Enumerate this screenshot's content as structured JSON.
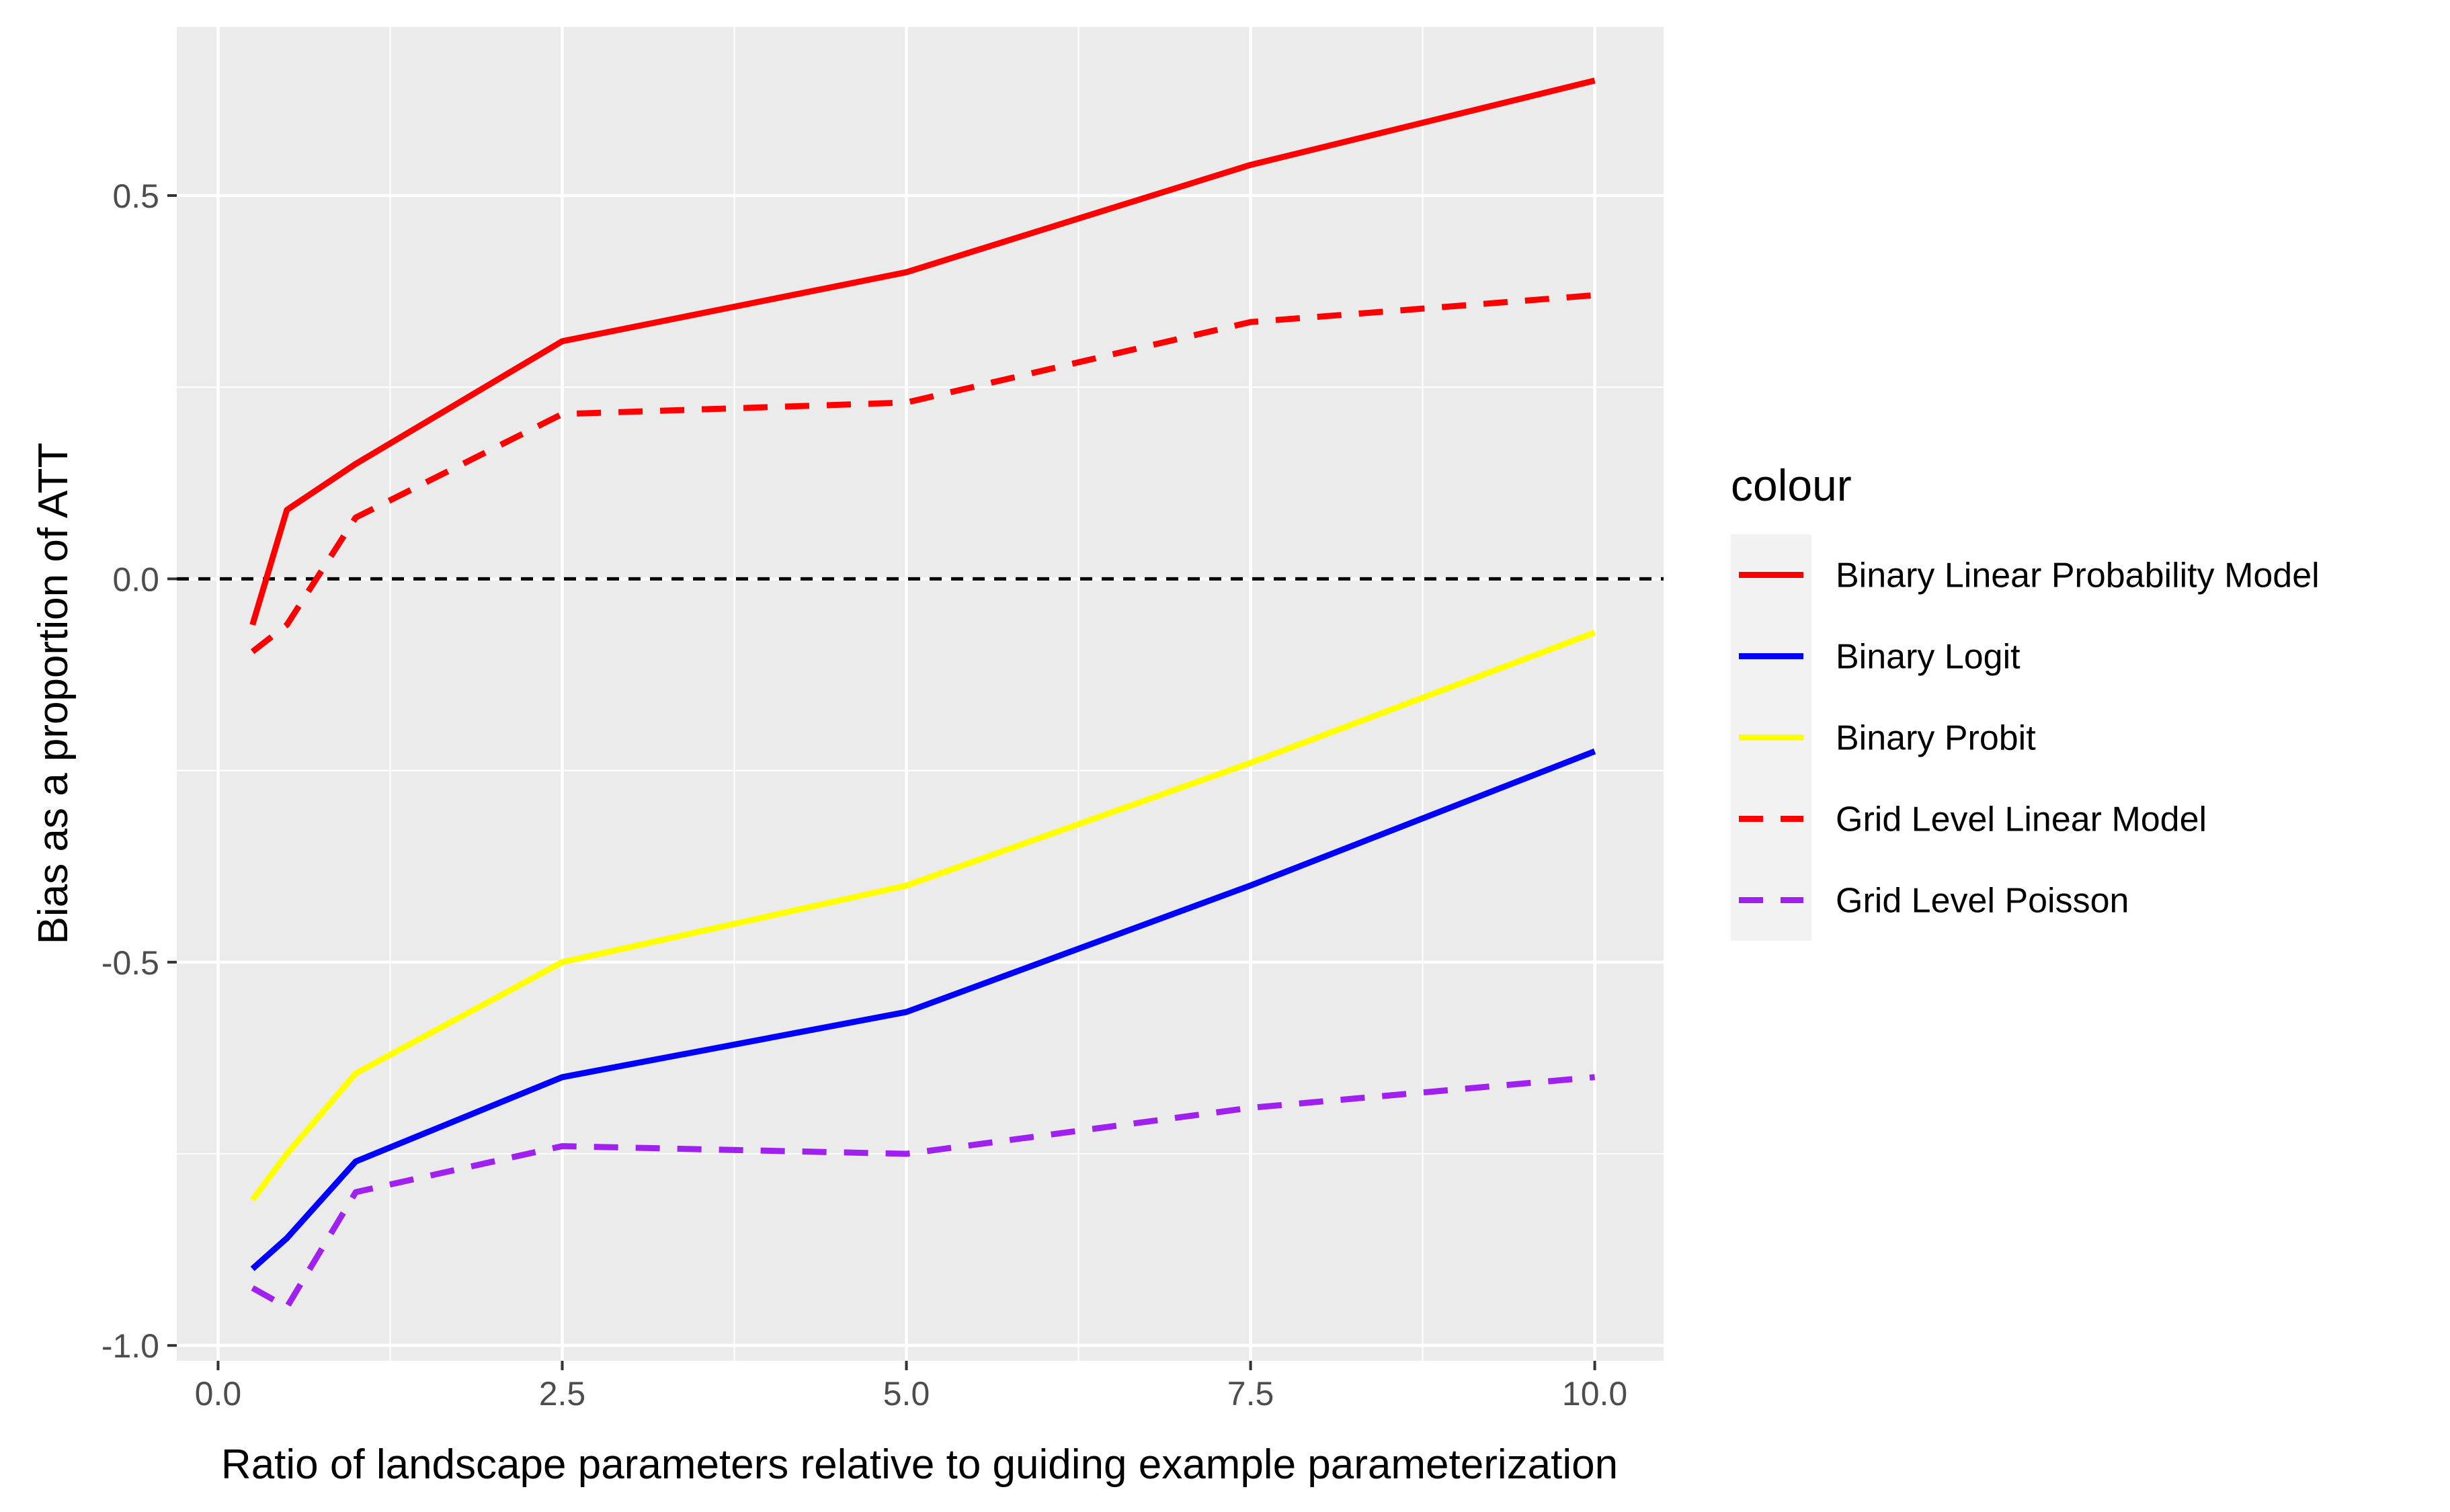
{
  "chart_data": {
    "type": "line",
    "xlabel": "Ratio of landscape parameters relative to guiding example parameterization",
    "ylabel": "Bias as a proportion of ATT",
    "xlim": [
      -0.3,
      10.5
    ],
    "ylim": [
      -1.02,
      0.72
    ],
    "x_ticks": [
      0.0,
      2.5,
      5.0,
      7.5,
      10.0
    ],
    "x_tick_labels": [
      "0.0",
      "2.5",
      "5.0",
      "7.5",
      "10.0"
    ],
    "y_ticks": [
      0.5,
      0.0,
      -0.5,
      -1.0
    ],
    "y_tick_labels": [
      "0.5",
      "0.0",
      "-0.5",
      "-1.0"
    ],
    "grid": true,
    "legend": {
      "title": "colour",
      "position": "right"
    },
    "reference_line": {
      "y": 0.0,
      "style": "dashed",
      "color": "#000000"
    },
    "series": [
      {
        "name": "Binary Linear Probability Model",
        "color": "#FF0000",
        "dash": "solid",
        "x": [
          0.25,
          0.5,
          1.0,
          2.5,
          5.0,
          7.5,
          10.0
        ],
        "y": [
          -0.06,
          0.09,
          0.15,
          0.31,
          0.4,
          0.54,
          0.65
        ]
      },
      {
        "name": "Binary Logit",
        "color": "#0000FF",
        "dash": "solid",
        "x": [
          0.25,
          0.5,
          1.0,
          2.5,
          5.0,
          7.5,
          10.0
        ],
        "y": [
          -0.9,
          -0.86,
          -0.76,
          -0.65,
          -0.565,
          -0.4,
          -0.225
        ]
      },
      {
        "name": "Binary Probit",
        "color": "#FFFF00",
        "dash": "solid",
        "x": [
          0.25,
          0.5,
          1.0,
          2.5,
          5.0,
          7.5,
          10.0
        ],
        "y": [
          -0.81,
          -0.75,
          -0.645,
          -0.5,
          -0.4,
          -0.24,
          -0.07
        ]
      },
      {
        "name": "Grid Level Linear Model",
        "color": "#FF0000",
        "dash": "dashed",
        "x": [
          0.25,
          0.5,
          1.0,
          2.5,
          5.0,
          7.5,
          10.0
        ],
        "y": [
          -0.095,
          -0.06,
          0.08,
          0.215,
          0.23,
          0.335,
          0.37
        ]
      },
      {
        "name": "Grid Level Poisson",
        "color": "#A020F0",
        "dash": "dashed",
        "x": [
          0.25,
          0.5,
          1.0,
          2.5,
          5.0,
          7.5,
          10.0
        ],
        "y": [
          -0.925,
          -0.95,
          -0.8,
          -0.74,
          -0.75,
          -0.69,
          -0.65
        ]
      }
    ]
  }
}
